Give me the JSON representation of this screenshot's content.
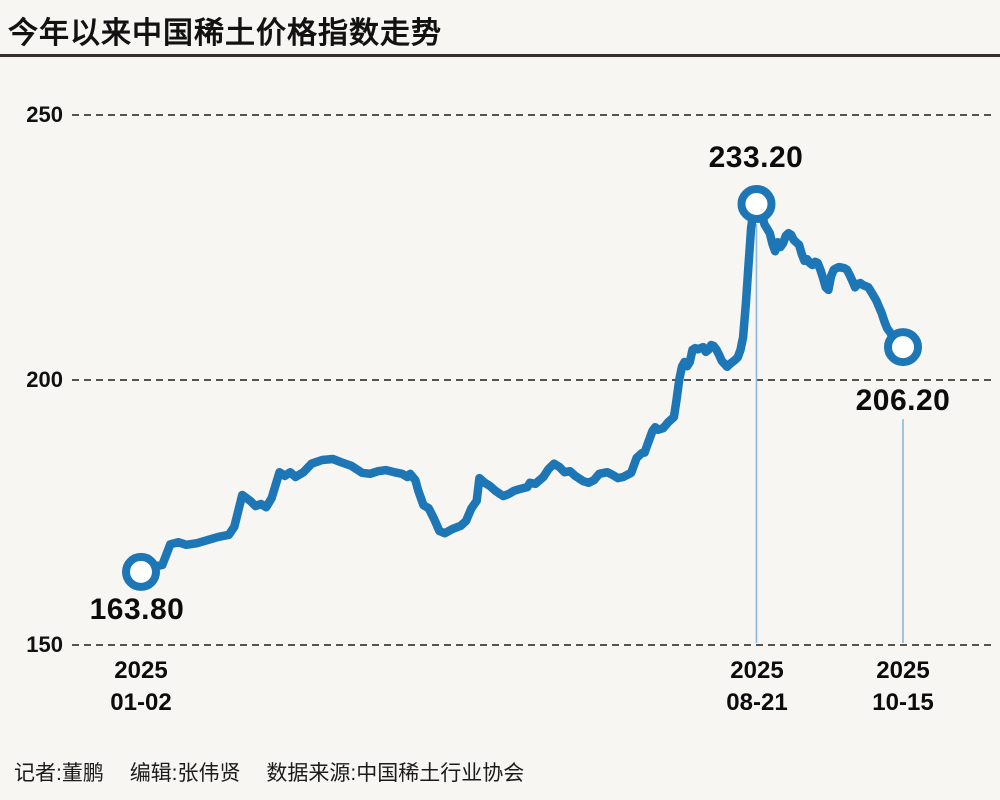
{
  "header": {
    "title": "今年以来中国稀土价格指数走势"
  },
  "footer": {
    "reporter": "记者:董鹏",
    "editor": "编辑:张伟贤",
    "source": "数据来源:中国稀土行业协会"
  },
  "colors": {
    "background": "#f7f6f3",
    "line": "#1d76b5",
    "marker_fill": "#ffffff",
    "grid": "#3d3d3d",
    "ref_line": "#8ab9d9",
    "text": "#111111"
  },
  "chart_data": {
    "type": "line",
    "title": "今年以来中国稀土价格指数走势",
    "xlabel": "",
    "ylabel": "",
    "ylim": [
      150,
      250
    ],
    "yticks": [
      250,
      200,
      150
    ],
    "grid": "horizontal-dashed",
    "legend": "none",
    "x_description": "days since 2025-01-02; series points are [day, index_value]",
    "annotations": [
      {
        "label": "163.80",
        "value": 163.8,
        "d": 0,
        "date": "2025-01-02",
        "date_lines": [
          "2025",
          "01-02"
        ]
      },
      {
        "label": "233.20",
        "value": 233.2,
        "d": 231,
        "date": "2025-08-21",
        "date_lines": [
          "2025",
          "08-21"
        ]
      },
      {
        "label": "206.20",
        "value": 206.2,
        "d": 286,
        "date": "2025-10-15",
        "date_lines": [
          "2025",
          "10-15"
        ]
      }
    ],
    "series": [
      {
        "name": "中国稀土价格指数",
        "points": [
          [
            0,
            163.8
          ],
          [
            4,
            164.7
          ],
          [
            8,
            165.1
          ],
          [
            11,
            169.0
          ],
          [
            14,
            169.4
          ],
          [
            17,
            168.9
          ],
          [
            21,
            169.2
          ],
          [
            25,
            169.8
          ],
          [
            29,
            170.4
          ],
          [
            33,
            170.8
          ],
          [
            35,
            172.3
          ],
          [
            38,
            178.3
          ],
          [
            41,
            177.2
          ],
          [
            43,
            176.2
          ],
          [
            45,
            176.6
          ],
          [
            47,
            176.0
          ],
          [
            49,
            177.7
          ],
          [
            52,
            182.6
          ],
          [
            54,
            181.9
          ],
          [
            56,
            182.6
          ],
          [
            58,
            181.7
          ],
          [
            61,
            182.6
          ],
          [
            64,
            184.2
          ],
          [
            68,
            184.9
          ],
          [
            72,
            185.1
          ],
          [
            75,
            184.5
          ],
          [
            79,
            183.8
          ],
          [
            83,
            182.5
          ],
          [
            86,
            182.3
          ],
          [
            89,
            182.8
          ],
          [
            92,
            183.0
          ],
          [
            95,
            182.6
          ],
          [
            98,
            182.3
          ],
          [
            100,
            181.7
          ],
          [
            101,
            182.3
          ],
          [
            103,
            181.1
          ],
          [
            104,
            179.2
          ],
          [
            106,
            176.4
          ],
          [
            108,
            175.8
          ],
          [
            110,
            173.8
          ],
          [
            112,
            171.5
          ],
          [
            114,
            171.1
          ],
          [
            117,
            171.9
          ],
          [
            120,
            172.5
          ],
          [
            122,
            173.4
          ],
          [
            124,
            175.8
          ],
          [
            126,
            177.2
          ],
          [
            127,
            181.5
          ],
          [
            129,
            180.6
          ],
          [
            131,
            180.0
          ],
          [
            133,
            179.1
          ],
          [
            136,
            178.1
          ],
          [
            138,
            178.5
          ],
          [
            140,
            179.1
          ],
          [
            142,
            179.4
          ],
          [
            145,
            179.8
          ],
          [
            146,
            180.6
          ],
          [
            148,
            180.4
          ],
          [
            151,
            181.7
          ],
          [
            153,
            183.2
          ],
          [
            155,
            184.2
          ],
          [
            157,
            183.6
          ],
          [
            159,
            182.6
          ],
          [
            161,
            182.8
          ],
          [
            163,
            181.9
          ],
          [
            166,
            180.9
          ],
          [
            168,
            180.6
          ],
          [
            170,
            181.1
          ],
          [
            172,
            182.3
          ],
          [
            175,
            182.6
          ],
          [
            177,
            182.1
          ],
          [
            179,
            181.5
          ],
          [
            181,
            181.7
          ],
          [
            184,
            182.5
          ],
          [
            186,
            185.3
          ],
          [
            188,
            186.2
          ],
          [
            189,
            186.3
          ],
          [
            190,
            187.7
          ],
          [
            192,
            190.4
          ],
          [
            193,
            191.1
          ],
          [
            194,
            190.6
          ],
          [
            196,
            190.9
          ],
          [
            198,
            192.1
          ],
          [
            200,
            193.0
          ],
          [
            201,
            196.2
          ],
          [
            202,
            200.0
          ],
          [
            203,
            202.5
          ],
          [
            204,
            203.4
          ],
          [
            205,
            202.6
          ],
          [
            206,
            203.4
          ],
          [
            207,
            205.7
          ],
          [
            208,
            206.0
          ],
          [
            209,
            205.8
          ],
          [
            211,
            206.2
          ],
          [
            212,
            205.3
          ],
          [
            213,
            205.7
          ],
          [
            214,
            206.6
          ],
          [
            215,
            206.4
          ],
          [
            216,
            205.7
          ],
          [
            217,
            204.7
          ],
          [
            218,
            203.6
          ],
          [
            220,
            202.5
          ],
          [
            221,
            203.0
          ],
          [
            223,
            203.8
          ],
          [
            224,
            204.3
          ],
          [
            225,
            205.7
          ],
          [
            226,
            208.1
          ],
          [
            227,
            214.2
          ],
          [
            228,
            221.7
          ],
          [
            229,
            228.7
          ],
          [
            230,
            232.2
          ],
          [
            231,
            233.2
          ],
          [
            233,
            231.5
          ],
          [
            234,
            229.4
          ],
          [
            236,
            227.7
          ],
          [
            237,
            225.7
          ],
          [
            238,
            224.3
          ],
          [
            239,
            226.0
          ],
          [
            240,
            225.1
          ],
          [
            241,
            225.8
          ],
          [
            242,
            227.2
          ],
          [
            243,
            227.7
          ],
          [
            244,
            227.4
          ],
          [
            245,
            226.4
          ],
          [
            247,
            225.5
          ],
          [
            248,
            223.8
          ],
          [
            249,
            222.5
          ],
          [
            250,
            222.8
          ],
          [
            251,
            222.1
          ],
          [
            252,
            221.7
          ],
          [
            253,
            222.3
          ],
          [
            254,
            222.1
          ],
          [
            255,
            220.8
          ],
          [
            256,
            219.2
          ],
          [
            257,
            217.5
          ],
          [
            258,
            217.0
          ],
          [
            259,
            219.6
          ],
          [
            260,
            220.8
          ],
          [
            261,
            221.1
          ],
          [
            262,
            221.3
          ],
          [
            264,
            221.1
          ],
          [
            265,
            220.8
          ],
          [
            266,
            219.8
          ],
          [
            267,
            218.7
          ],
          [
            268,
            217.5
          ],
          [
            269,
            218.1
          ],
          [
            270,
            218.3
          ],
          [
            271,
            217.9
          ],
          [
            273,
            217.5
          ],
          [
            274,
            216.7
          ],
          [
            276,
            215.0
          ],
          [
            277,
            213.8
          ],
          [
            278,
            212.6
          ],
          [
            279,
            211.1
          ],
          [
            280,
            209.8
          ],
          [
            281,
            209.1
          ],
          [
            282,
            208.3
          ],
          [
            284,
            207.5
          ],
          [
            286,
            206.2
          ]
        ]
      }
    ]
  }
}
